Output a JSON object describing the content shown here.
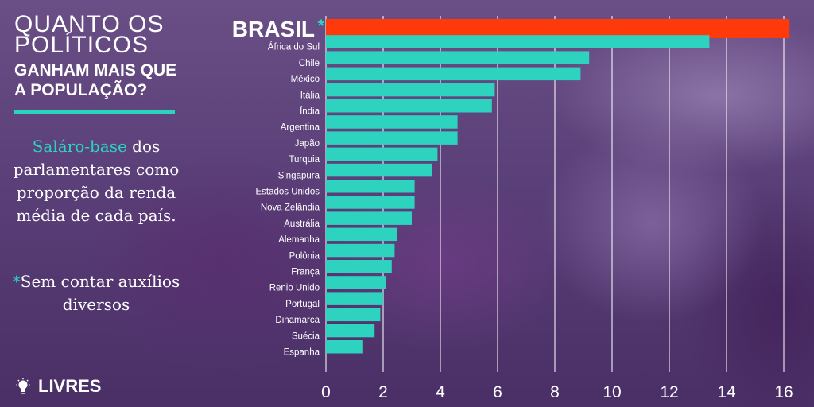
{
  "headline": {
    "line1": "QUANTO OS",
    "line2": "POLÍTICOS",
    "line3": "GANHAM MAIS QUE",
    "line4": "A POPULAÇÃO?"
  },
  "description": {
    "highlight": "Saláro-base",
    "rest": " dos parlamentares como proporção da renda média de cada país."
  },
  "note": {
    "asterisk": "*",
    "text": "Sem contar auxílios diversos"
  },
  "logo": {
    "icon": "lightbulb-icon",
    "text": "LIVRES"
  },
  "colors": {
    "highlight_bar": "#ff3a0a",
    "bar": "#2ed3c0",
    "accent": "#2ed3c0",
    "text": "#ffffff"
  },
  "chart_data": {
    "type": "bar",
    "orientation": "horizontal",
    "highlight_label": "BRASIL",
    "highlight_mark": "*",
    "categories": [
      "BRASIL",
      "África do Sul",
      "Chile",
      "México",
      "Itália",
      "Índia",
      "Argentina",
      "Japão",
      "Turquia",
      "Singapura",
      "Estados Unidos",
      "Nova Zelândia",
      "Austrália",
      "Alemanha",
      "Polônia",
      "França",
      "Renio Unido",
      "Portugal",
      "Dinamarca",
      "Suécia",
      "Espanha"
    ],
    "values": [
      16.2,
      13.4,
      9.2,
      8.9,
      5.9,
      5.8,
      4.6,
      4.6,
      3.9,
      3.7,
      3.1,
      3.1,
      3.0,
      2.5,
      2.4,
      2.3,
      2.1,
      2.0,
      1.9,
      1.7,
      1.3
    ],
    "xlim": [
      0,
      16.8
    ],
    "xticks": [
      "0",
      "2",
      "4",
      "6",
      "8",
      "10",
      "12",
      "14",
      "16"
    ],
    "grid": true,
    "title": "",
    "xlabel": "",
    "ylabel": ""
  }
}
